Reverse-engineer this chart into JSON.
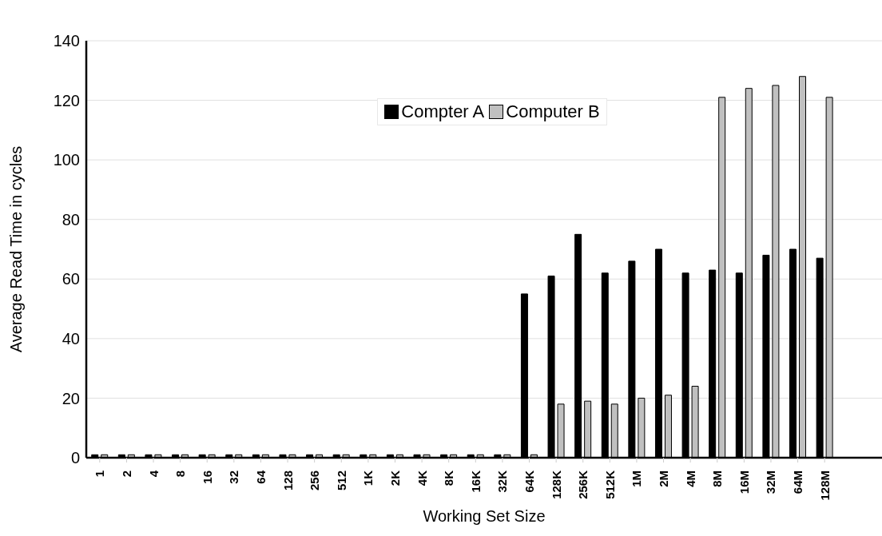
{
  "chart_data": {
    "type": "bar",
    "xlabel": "Working Set Size",
    "ylabel": "Average Read Time in cycles",
    "categories": [
      "1",
      "2",
      "4",
      "8",
      "16",
      "32",
      "64",
      "128",
      "256",
      "512",
      "1K",
      "2K",
      "4K",
      "8K",
      "16K",
      "32K",
      "64K",
      "128K",
      "256K",
      "512K",
      "1M",
      "2M",
      "4M",
      "8M",
      "16M",
      "32M",
      "64M",
      "128M"
    ],
    "series": [
      {
        "name": "Compter A",
        "color": "#000000",
        "values": [
          1,
          1,
          1,
          1,
          1,
          1,
          1,
          1,
          1,
          1,
          1,
          1,
          1,
          1,
          1,
          1,
          55,
          61,
          75,
          62,
          66,
          70,
          62,
          63,
          62,
          68,
          70,
          67
        ]
      },
      {
        "name": "Computer B",
        "color": "#c0c0c0",
        "values": [
          1,
          1,
          1,
          1,
          1,
          1,
          1,
          1,
          1,
          1,
          1,
          1,
          1,
          1,
          1,
          1,
          1,
          18,
          19,
          18,
          20,
          21,
          24,
          121,
          124,
          125,
          128,
          121
        ]
      }
    ],
    "ylim": [
      0,
      140
    ],
    "yticks": [
      0,
      20,
      40,
      60,
      80,
      100,
      120,
      140
    ],
    "grid": "y",
    "legend": "top"
  }
}
